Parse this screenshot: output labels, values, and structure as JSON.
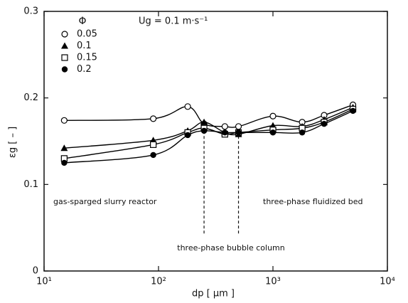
{
  "chart_data": {
    "type": "scatter-line",
    "title_symbol": "Φ",
    "annotation_condition": "Ug = 0.1 m·s⁻¹",
    "y_label": "εg [ – ]",
    "x_label": "dp [ μm ]",
    "annotations": [
      "gas-sparged slurry reactor",
      "three-phase fluidized bed",
      "three-phase bubble column"
    ],
    "regime_boundaries": [
      250,
      500
    ],
    "x": [
      15,
      90,
      180,
      250,
      380,
      500,
      1000,
      1800,
      2800,
      5000
    ],
    "series": [
      {
        "name": "0.05",
        "color": "#000000",
        "marker": "open-circle",
        "values": [
          0.174,
          0.176,
          0.19,
          0.17,
          0.167,
          0.167,
          0.179,
          0.172,
          0.18,
          0.192
        ]
      },
      {
        "name": "0.1",
        "color": "#000000",
        "marker": "filled-triangle",
        "values": [
          0.142,
          0.151,
          0.162,
          0.172,
          0.16,
          0.158,
          0.168,
          0.167,
          0.175,
          0.189
        ]
      },
      {
        "name": "0.15",
        "color": "#000000",
        "marker": "open-square",
        "values": [
          0.13,
          0.146,
          0.16,
          0.165,
          0.158,
          0.16,
          0.163,
          0.165,
          0.172,
          0.187
        ]
      },
      {
        "name": "0.2",
        "color": "#000000",
        "marker": "filled-circle",
        "values": [
          0.125,
          0.134,
          0.157,
          0.162,
          0.16,
          0.16,
          0.16,
          0.16,
          0.17,
          0.185
        ]
      }
    ],
    "xscale": "log",
    "xlim": [
      10,
      10000
    ],
    "xticks": [
      {
        "value": 10,
        "label": "10¹"
      },
      {
        "value": 100,
        "label": "10²"
      },
      {
        "value": 1000,
        "label": "10³"
      },
      {
        "value": 10000,
        "label": "10⁴"
      }
    ],
    "ylim": [
      0,
      0.3
    ],
    "yticks": [
      0,
      0.1,
      0.2,
      0.3
    ],
    "grid": false
  }
}
